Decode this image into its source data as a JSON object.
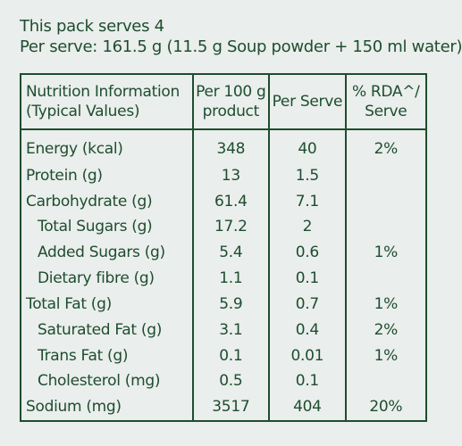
{
  "pack": {
    "serves": "This pack serves 4",
    "per_serve": "Per serve: 161.5 g (11.5 g Soup powder + 150 ml water)"
  },
  "table": {
    "headers": {
      "name_line1": "Nutrition Information",
      "name_line2": "(Typical Values)",
      "per100_line1": "Per 100 g",
      "per100_line2": "product",
      "per_serve": "Per Serve",
      "rda_line1": "% RDA^/",
      "rda_line2": "Serve"
    },
    "rows": [
      {
        "name": "Energy (kcal)",
        "per100": "348",
        "serve": "40",
        "rda": "2%"
      },
      {
        "name": "Protein (g)",
        "per100": "13",
        "serve": "1.5",
        "rda": ""
      },
      {
        "name": "Carbohydrate (g)",
        "per100": "61.4",
        "serve": "7.1",
        "rda": ""
      },
      {
        "name": "Total Sugars (g)",
        "per100": "17.2",
        "serve": "2",
        "rda": ""
      },
      {
        "name": "Added Sugars (g)",
        "per100": "5.4",
        "serve": "0.6",
        "rda": "1%"
      },
      {
        "name": "Dietary fibre (g)",
        "per100": "1.1",
        "serve": "0.1",
        "rda": ""
      },
      {
        "name": "Total Fat (g)",
        "per100": "5.9",
        "serve": "0.7",
        "rda": "1%"
      },
      {
        "name": "Saturated Fat (g)",
        "per100": "3.1",
        "serve": "0.4",
        "rda": "2%"
      },
      {
        "name": "Trans Fat (g)",
        "per100": "0.1",
        "serve": "0.01",
        "rda": "1%"
      },
      {
        "name": "Cholesterol (mg)",
        "per100": "0.5",
        "serve": "0.1",
        "rda": ""
      },
      {
        "name": "Sodium (mg)",
        "per100": "3517",
        "serve": "404",
        "rda": "20%"
      }
    ]
  },
  "colors": {
    "background": "#eaeeec",
    "text": "#1e4d2f"
  }
}
